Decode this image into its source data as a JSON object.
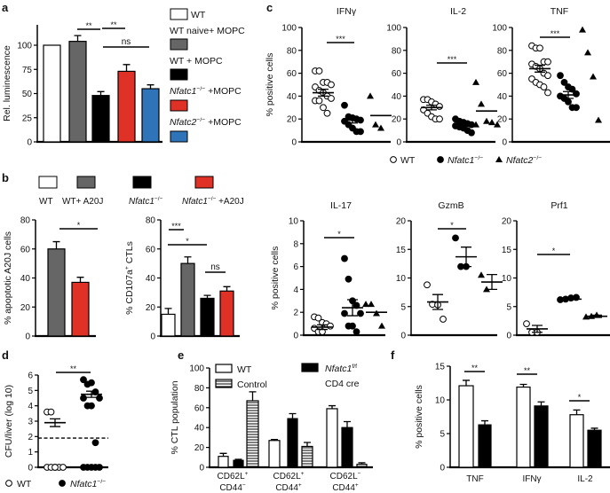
{
  "panel_labels": {
    "a": "a",
    "b": "b",
    "c": "c",
    "d": "d",
    "e": "e",
    "f": "f"
  },
  "legend_c": [
    {
      "marker": "open-circle",
      "label": "WT"
    },
    {
      "marker": "filled-circle",
      "label": [
        {
          "t": "Nfatc1",
          "italic": true
        },
        {
          "t": "−/−",
          "sup": true
        }
      ]
    },
    {
      "marker": "filled-triangle",
      "label": [
        {
          "t": "Nfatc2",
          "italic": true
        },
        {
          "t": "−/−",
          "sup": true
        }
      ]
    }
  ],
  "legend_d": [
    {
      "marker": "open-circle",
      "label": "WT"
    },
    {
      "marker": "filled-circle",
      "label": [
        {
          "t": "Nfatc1",
          "italic": true
        },
        {
          "t": "−/−",
          "sup": true
        }
      ]
    }
  ],
  "legend_e": [
    {
      "fill": "white",
      "label": "WT"
    },
    {
      "fill": "hatched",
      "label": "Control"
    },
    {
      "fill": "#000000",
      "label": [
        {
          "t": "Nfatc1",
          "italic": true
        },
        {
          "t": "f/f",
          "sup": true
        }
      ],
      "label2": "CD4 cre"
    }
  ],
  "chart_data": [
    {
      "panel": "a",
      "type": "bar",
      "ylabel": "Rel. luminescence",
      "ylim": [
        0,
        100
      ],
      "yticks": [
        0,
        25,
        50,
        75,
        100
      ],
      "categories": [
        "WT",
        "WT naive+ MOPC",
        "WT + MOPC",
        [
          {
            "t": "Nfatc1",
            "italic": true
          },
          {
            "t": "−/−",
            "sup": true
          },
          {
            "t": " +MOPC"
          }
        ],
        [
          {
            "t": "Nfatc2",
            "italic": true
          },
          {
            "t": "−/−",
            "sup": true
          },
          {
            "t": " +MOPC"
          }
        ]
      ],
      "values": [
        100,
        104,
        48,
        73,
        55
      ],
      "errors": [
        0,
        6,
        4,
        7,
        4
      ],
      "colors": [
        "#ffffff",
        "#666666",
        "#000000",
        "#e03127",
        "#2f73b8"
      ],
      "significance": [
        {
          "label": "**"
        },
        {
          "label": "**"
        },
        {
          "label": "ns"
        }
      ],
      "legend": "right"
    },
    {
      "panel": "b-left",
      "type": "bar",
      "ylabel": "% apoptotic A20J cells",
      "ylim": [
        0,
        80
      ],
      "yticks": [
        0,
        20,
        40,
        60,
        80
      ],
      "categories": [
        "WT+ A20J",
        [
          {
            "t": "Nfatc1",
            "italic": true
          },
          {
            "t": "−/−",
            "sup": true
          },
          {
            "t": " +A20J"
          }
        ]
      ],
      "values": [
        60,
        37
      ],
      "errors": [
        5,
        3.5
      ],
      "colors": [
        "#666666",
        "#e03127"
      ],
      "significance": [
        {
          "label": "*"
        }
      ]
    },
    {
      "panel": "b-right",
      "type": "bar",
      "ylabel": [
        {
          "t": "% CD107a"
        },
        {
          "t": "+",
          "sup": true
        },
        {
          "t": " CTLs"
        }
      ],
      "ylim": [
        0,
        80
      ],
      "yticks": [
        0,
        20,
        40,
        60,
        80
      ],
      "categories": [
        "WT",
        "WT+ A20J",
        [
          {
            "t": "Nfatc1",
            "italic": true
          },
          {
            "t": "−/−",
            "sup": true
          }
        ],
        [
          {
            "t": "Nfatc1",
            "italic": true
          },
          {
            "t": "−/−",
            "sup": true
          },
          {
            "t": " +A20J"
          }
        ]
      ],
      "values": [
        15,
        50,
        26,
        31
      ],
      "errors": [
        4,
        4.5,
        2,
        3
      ],
      "colors": [
        "#ffffff",
        "#666666",
        "#000000",
        "#e03127"
      ],
      "significance": [
        {
          "label": "***"
        },
        {
          "label": "*"
        },
        {
          "label": "ns"
        }
      ],
      "legend": "top"
    },
    {
      "panel": "c-IFNg",
      "type": "scatter",
      "title": "IFNγ",
      "ylabel": "% positive cells",
      "ylim": [
        0,
        100
      ],
      "yticks": [
        0,
        20,
        40,
        60,
        80,
        100
      ],
      "groups": [
        {
          "name": "WT",
          "marker": "open-circle",
          "values": [
            62,
            62,
            52,
            52,
            50,
            48,
            45,
            43,
            40,
            38,
            36,
            36,
            30,
            25
          ],
          "mean": 43,
          "sem": 3
        },
        {
          "name": "Nfatc1−/−",
          "marker": "filled-circle",
          "values": [
            32,
            22,
            21,
            20,
            19,
            18,
            15,
            12,
            9,
            9
          ],
          "mean": 19,
          "sem": 2.5
        },
        {
          "name": "Nfatc2−/−",
          "marker": "filled-triangle",
          "values": [
            40,
            15,
            12
          ],
          "mean": 23,
          "sem": 0
        }
      ],
      "significance": [
        {
          "label": "***"
        }
      ]
    },
    {
      "panel": "c-IL2",
      "type": "scatter",
      "title": "IL-2",
      "ylim": [
        0,
        100
      ],
      "yticks": [
        0,
        20,
        40,
        60,
        80,
        100
      ],
      "groups": [
        {
          "name": "WT",
          "marker": "open-circle",
          "values": [
            37,
            37,
            35,
            33,
            31,
            28,
            25,
            22,
            20,
            20
          ],
          "mean": 30,
          "sem": 2
        },
        {
          "name": "Nfatc1−/−",
          "marker": "filled-circle",
          "values": [
            20,
            18,
            17,
            16,
            15,
            14,
            13,
            12,
            10,
            8
          ],
          "mean": 15,
          "sem": 1
        },
        {
          "name": "Nfatc2−/−",
          "marker": "filled-triangle",
          "values": [
            52,
            33,
            18,
            17,
            15,
            15
          ],
          "mean": 27,
          "sem": 0
        }
      ],
      "significance": [
        {
          "label": "***"
        }
      ]
    },
    {
      "panel": "c-TNF",
      "type": "scatter",
      "title": "TNF",
      "ylim": [
        0,
        100
      ],
      "yticks": [
        0,
        20,
        40,
        60,
        80,
        100
      ],
      "groups": [
        {
          "name": "WT",
          "marker": "open-circle",
          "values": [
            84,
            82,
            82,
            70,
            70,
            68,
            66,
            64,
            60,
            58,
            55,
            52,
            50,
            48,
            43
          ],
          "mean": 64,
          "sem": 3
        },
        {
          "name": "Nfatc1−/−",
          "marker": "filled-circle",
          "values": [
            58,
            52,
            48,
            46,
            42,
            40,
            38,
            35,
            30,
            30
          ],
          "mean": 41,
          "sem": 3
        },
        {
          "name": "Nfatc2−/−",
          "marker": "filled-triangle",
          "values": [
            98,
            78,
            57,
            19
          ],
          "mean": null,
          "sem": null
        }
      ],
      "significance": [
        {
          "label": "***"
        }
      ]
    },
    {
      "panel": "c-IL17",
      "type": "scatter",
      "title": "IL-17",
      "ylabel": "% positive cells",
      "ylim": [
        0,
        10
      ],
      "yticks": [
        0,
        2,
        4,
        6,
        8,
        10
      ],
      "groups": [
        {
          "name": "WT",
          "marker": "open-circle",
          "values": [
            1.6,
            1.5,
            1.1,
            1.0,
            0.8,
            0.6,
            0.3,
            0.3
          ],
          "mean": 0.7,
          "sem": 0.2
        },
        {
          "name": "Nfatc1−/−",
          "marker": "filled-circle",
          "values": [
            6.7,
            4.9,
            3.0,
            2.6,
            1.9,
            1.9,
            0.8,
            0.8,
            0.3
          ],
          "mean": 2.4,
          "sem": 0.7
        },
        {
          "name": "Nfatc2−/−",
          "marker": "filled-triangle",
          "values": [
            2.7,
            2.7,
            1.9,
            0.8
          ],
          "mean": 2.0,
          "sem": 0
        }
      ],
      "significance": [
        {
          "label": "*"
        }
      ]
    },
    {
      "panel": "c-GzmB",
      "type": "scatter",
      "title": "GzmB",
      "ylim": [
        0,
        20
      ],
      "yticks": [
        0,
        5,
        10,
        15,
        20
      ],
      "groups": [
        {
          "name": "WT",
          "marker": "open-circle",
          "values": [
            8.8,
            5.4,
            5.3,
            2.8
          ],
          "mean": 5.8,
          "sem": 1.3
        },
        {
          "name": "Nfatc1−/−",
          "marker": "filled-circle",
          "values": [
            17,
            12,
            12
          ],
          "mean": 13.7,
          "sem": 1.7
        },
        {
          "name": "Nfatc2−/−",
          "marker": "filled-triangle",
          "values": [
            10.5,
            8
          ],
          "mean": 9.3,
          "sem": 1.3
        }
      ],
      "significance": [
        {
          "label": "*"
        }
      ]
    },
    {
      "panel": "c-Prf1",
      "type": "scatter",
      "title": "Prf1",
      "ylim": [
        0,
        20
      ],
      "yticks": [
        0,
        5,
        10,
        15,
        20
      ],
      "groups": [
        {
          "name": "WT",
          "marker": "open-circle",
          "values": [
            2,
            0.5,
            0.5
          ],
          "mean": 1.1,
          "sem": 0.6
        },
        {
          "name": "Nfatc1−/−",
          "marker": "filled-circle",
          "values": [
            6.2,
            6.3,
            6.5,
            6.6
          ],
          "mean": 6.3,
          "sem": 0.1
        },
        {
          "name": "Nfatc2−/−",
          "marker": "filled-triangle",
          "values": [
            3.2,
            3.3,
            3.5
          ],
          "mean": 3.3,
          "sem": 0.2
        }
      ],
      "significance": [
        {
          "label": "*"
        }
      ]
    },
    {
      "panel": "d",
      "type": "scatter",
      "ylabel": "CFU/liver (log 10)",
      "ylim": [
        0,
        6
      ],
      "yticks": [
        0,
        1,
        2,
        3,
        4,
        5,
        6
      ],
      "detection_limit": 1.9,
      "groups": [
        {
          "name": "WT",
          "marker": "open-circle",
          "values": [
            3.6,
            3.6,
            0,
            0,
            0,
            0,
            0,
            0
          ],
          "mean": 2.9,
          "sem": 0.25
        },
        {
          "name": "Nfatc1−/−",
          "marker": "filled-circle",
          "values": [
            5.7,
            5.4,
            5.5,
            4.9,
            4.5,
            4.5,
            4.0,
            4.0,
            1.6,
            0,
            0,
            0,
            0,
            0
          ],
          "mean": 4.75,
          "sem": 0.2
        }
      ],
      "significance": [
        {
          "label": "**"
        }
      ]
    },
    {
      "panel": "e",
      "type": "bar",
      "ylabel": "% CTL population",
      "ylim": [
        0,
        100
      ],
      "yticks": [
        0,
        20,
        40,
        60,
        80,
        100
      ],
      "categories": [
        {
          "l1": [
            {
              "t": "CD62L"
            },
            {
              "t": "+",
              "sup": true
            }
          ],
          "l2": [
            {
              "t": "CD44"
            },
            {
              "t": "−",
              "sup": true
            }
          ]
        },
        {
          "l1": [
            {
              "t": "CD62L"
            },
            {
              "t": "+",
              "sup": true
            }
          ],
          "l2": [
            {
              "t": "CD44"
            },
            {
              "t": "+",
              "sup": true
            }
          ]
        },
        {
          "l1": [
            {
              "t": "CD62L"
            },
            {
              "t": "−",
              "sup": true
            }
          ],
          "l2": [
            {
              "t": "CD44"
            },
            {
              "t": "+",
              "sup": true
            }
          ]
        }
      ],
      "series": [
        {
          "name": "WT",
          "fill": "white",
          "values": [
            11,
            27,
            59
          ],
          "errors": [
            3,
            1,
            3
          ]
        },
        {
          "name": "Nfatc1f/f CD4 cre",
          "fill": "#000000",
          "values": [
            7,
            49,
            40
          ],
          "errors": [
            1,
            5,
            6
          ]
        },
        {
          "name": "Control",
          "fill": "hatched",
          "values": [
            67,
            21,
            3
          ],
          "errors": [
            9,
            4,
            1.5
          ]
        }
      ],
      "legend": "top"
    },
    {
      "panel": "f",
      "type": "bar",
      "ylabel": "% positive cells",
      "ylim": [
        0,
        15
      ],
      "yticks": [
        0,
        5,
        10,
        15
      ],
      "categories": [
        "TNF",
        "IFNγ",
        "IL-2"
      ],
      "series": [
        {
          "fill": "white",
          "values": [
            12.1,
            11.9,
            7.8
          ],
          "errors": [
            0.8,
            0.4,
            0.7
          ]
        },
        {
          "fill": "#000000",
          "values": [
            6.3,
            9.1,
            5.5
          ],
          "errors": [
            0.6,
            0.6,
            0.3
          ]
        }
      ],
      "significance": [
        {
          "label": "**"
        },
        {
          "label": "**"
        },
        {
          "label": "*"
        }
      ]
    }
  ]
}
